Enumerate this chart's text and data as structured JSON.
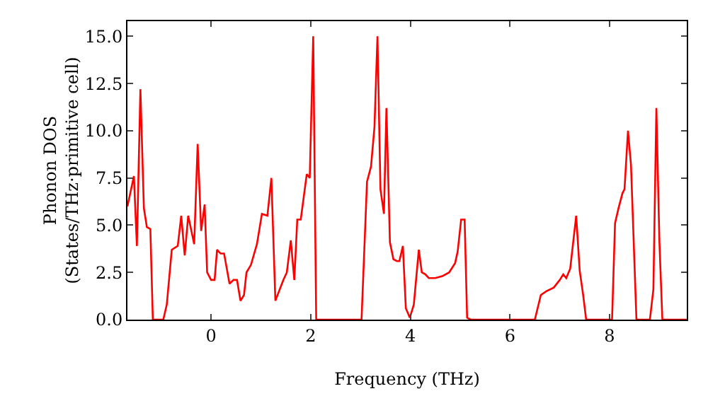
{
  "chart_data": {
    "type": "line",
    "xlabel": "Frequency (THz)",
    "ylabel": "Phonon DOS\n(States/THz·primitive cell)",
    "x": [
      -1.68,
      -1.55,
      -1.49,
      -1.42,
      -1.35,
      -1.29,
      -1.22,
      -1.17,
      -0.96,
      -0.89,
      -0.79,
      -0.67,
      -0.6,
      -0.53,
      -0.46,
      -0.34,
      -0.27,
      -0.2,
      -0.13,
      -0.08,
      0,
      0.07,
      0.12,
      0.19,
      0.26,
      0.37,
      0.45,
      0.52,
      0.59,
      0.66,
      0.71,
      0.8,
      0.92,
      1.02,
      1.13,
      1.21,
      1.29,
      1.45,
      1.52,
      1.6,
      1.67,
      1.73,
      1.8,
      1.92,
      1.98,
      2.05,
      2.11,
      3.02,
      3.13,
      3.21,
      3.28,
      3.34,
      3.4,
      3.47,
      3.52,
      3.59,
      3.66,
      3.73,
      3.78,
      3.85,
      3.91,
      3.99,
      4.07,
      4.17,
      4.23,
      4.3,
      4.37,
      4.5,
      4.64,
      4.78,
      4.9,
      4.95,
      5.02,
      5.09,
      5.14,
      5.21,
      6.5,
      6.62,
      6.73,
      6.88,
      7.0,
      7.07,
      7.13,
      7.21,
      7.33,
      7.4,
      7.47,
      7.53,
      8.05,
      8.11,
      8.18,
      8.26,
      8.3,
      8.37,
      8.43,
      8.54,
      8.81,
      8.88,
      8.94,
      9.0,
      9.06,
      9.55
    ],
    "series": [
      {
        "color": "#ff0000",
        "values": [
          6.0,
          7.6,
          3.9,
          12.2,
          5.9,
          4.9,
          4.8,
          0,
          0,
          0.8,
          3.7,
          3.9,
          5.5,
          3.4,
          5.5,
          4.0,
          9.3,
          4.7,
          6.1,
          2.5,
          2.1,
          2.1,
          3.7,
          3.5,
          3.5,
          1.9,
          2.1,
          2.1,
          1.0,
          1.3,
          2.5,
          2.9,
          4.0,
          5.6,
          5.5,
          7.5,
          1.0,
          2.1,
          2.5,
          4.2,
          2.1,
          5.3,
          5.3,
          7.7,
          7.5,
          15.0,
          0,
          0,
          7.3,
          8.1,
          10.2,
          15.0,
          6.9,
          5.6,
          11.2,
          4.1,
          3.2,
          3.1,
          3.1,
          3.9,
          0.6,
          0.1,
          0.8,
          3.7,
          2.5,
          2.4,
          2.2,
          2.2,
          2.3,
          2.5,
          3.0,
          3.6,
          5.3,
          5.3,
          0.1,
          0,
          0,
          1.3,
          1.5,
          1.7,
          2.1,
          2.4,
          2.2,
          2.7,
          5.5,
          2.6,
          1.3,
          0,
          0,
          5.1,
          5.9,
          6.7,
          6.9,
          10.0,
          8.2,
          0,
          0,
          1.6,
          11.2,
          4.2,
          0,
          0
        ]
      }
    ],
    "xlim": [
      -1.68,
      9.55
    ],
    "ylim": [
      0,
      15.8
    ],
    "xticks": [
      0,
      2,
      4,
      6,
      8
    ],
    "yticks": [
      {
        "value": 0,
        "label": "0.0"
      },
      {
        "value": 2.5,
        "label": "2.5"
      },
      {
        "value": 5,
        "label": "5.0"
      },
      {
        "value": 7.5,
        "label": "7.5"
      },
      {
        "value": 10,
        "label": "10.0"
      },
      {
        "value": 12.5,
        "label": "12.5"
      },
      {
        "value": 15,
        "label": "15.0"
      }
    ],
    "grid": false,
    "marker": "none",
    "line_style": "solid"
  }
}
